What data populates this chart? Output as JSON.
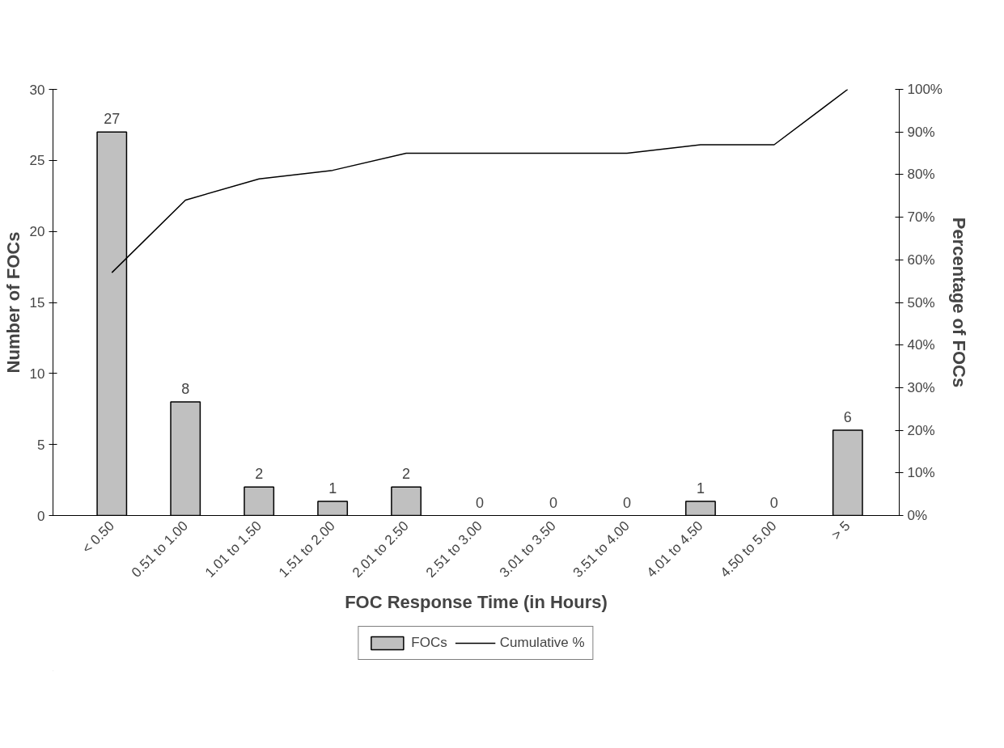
{
  "chart_data": {
    "type": "bar",
    "xlabel": "FOC Response Time (in Hours)",
    "ylabel": "Number of FOCs",
    "y2label": "Percentage of FOCs",
    "categories": [
      "< 0.50",
      "0.51 to 1.00",
      "1.01 to 1.50",
      "1.51 to 2.00",
      "2.01 to 2.50",
      "2.51 to 3.00",
      "3.01 to 3.50",
      "3.51 to 4.00",
      "4.01 to 4.50",
      "4.50 to 5.00",
      "> 5"
    ],
    "series": [
      {
        "name": "FOCs",
        "color": "#c0c0c0",
        "values": [
          27,
          8,
          2,
          1,
          2,
          0,
          0,
          0,
          1,
          0,
          6
        ],
        "value_labels": [
          "27",
          "8",
          "2",
          "1",
          "2",
          "0",
          "0",
          "0",
          "1",
          "0",
          "6"
        ]
      },
      {
        "name": "Cumulative %",
        "type": "line",
        "axis": "y2",
        "color": "#000000",
        "values": [
          57,
          74,
          79,
          81,
          85,
          85,
          85,
          85,
          87,
          87,
          100
        ]
      }
    ],
    "ylim": [
      0,
      30
    ],
    "yticks": [
      0,
      5,
      10,
      15,
      20,
      25,
      30
    ],
    "y2lim": [
      0,
      100
    ],
    "y2ticks": [
      {
        "value": 0,
        "label": "0%"
      },
      {
        "value": 10,
        "label": "10%"
      },
      {
        "value": 20,
        "label": "20%"
      },
      {
        "value": 30,
        "label": "30%"
      },
      {
        "value": 40,
        "label": "40%"
      },
      {
        "value": 50,
        "label": "50%"
      },
      {
        "value": 60,
        "label": "60%"
      },
      {
        "value": 70,
        "label": "70%"
      },
      {
        "value": 80,
        "label": "80%"
      },
      {
        "value": 90,
        "label": "90%"
      },
      {
        "value": 100,
        "label": "100%"
      }
    ],
    "grid": false,
    "legend": "bottom",
    "line_style": "solid",
    "marker": "none"
  }
}
